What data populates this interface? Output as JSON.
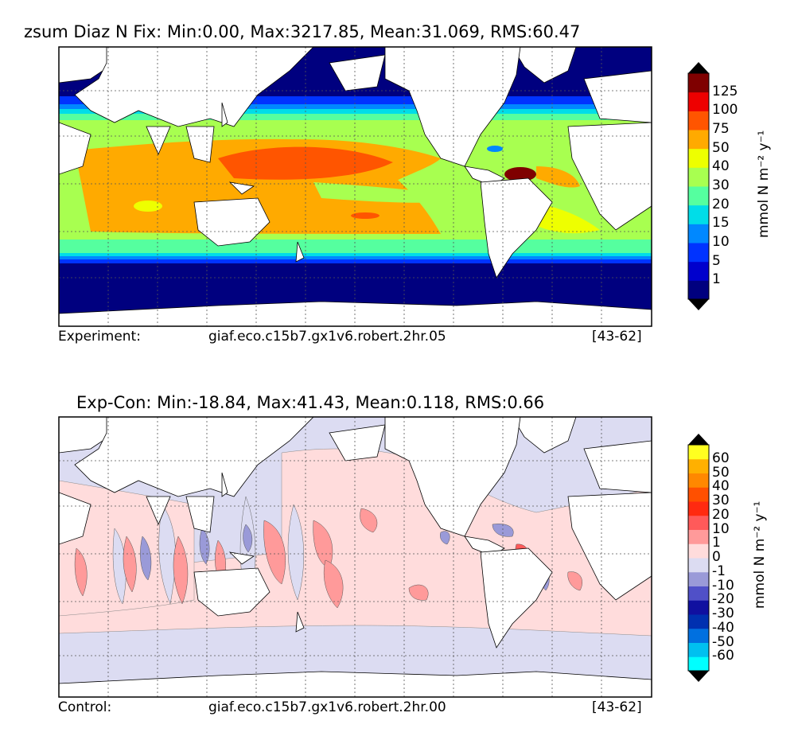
{
  "top_panel": {
    "title": "zsum Diaz N Fix: Min:0.00, Max:3217.85, Mean:31.069, RMS:60.47",
    "footer_left": "Experiment:",
    "footer_center": "giaf.eco.c15b7.gx1v6.robert.2hr.05",
    "footer_right": "[43-62]",
    "colorbar": {
      "labels": [
        "125",
        "100",
        "75",
        "50",
        "40",
        "30",
        "20",
        "15",
        "10",
        "5",
        "1"
      ],
      "units": "mmol N m⁻² y⁻¹",
      "colors": [
        "#00007f",
        "#0000cd",
        "#0033ff",
        "#0088ff",
        "#00dde8",
        "#55ff9f",
        "#a8ff50",
        "#eeff00",
        "#ffaa00",
        "#ff5500",
        "#ee0000",
        "#7f0000"
      ]
    }
  },
  "bottom_panel": {
    "title": "Exp-Con: Min:-18.84, Max:41.43, Mean:0.118, RMS:0.66",
    "footer_left": "Control:",
    "footer_center": "giaf.eco.c15b7.gx1v6.robert.2hr.00",
    "footer_right": "[43-62]",
    "colorbar": {
      "labels": [
        "60",
        "50",
        "40",
        "30",
        "20",
        "10",
        "1",
        "0",
        "-1",
        "-10",
        "-20",
        "-30",
        "-40",
        "-50",
        "-60"
      ],
      "units": "mmol N m⁻² y⁻¹",
      "colors": [
        "#00ffff",
        "#00c0f0",
        "#0070e0",
        "#0030b0",
        "#1010a0",
        "#5050c8",
        "#9a9ad8",
        "#dcdcf2",
        "#ffdcdc",
        "#ff9a9a",
        "#ff5a5a",
        "#ff2a10",
        "#ff5000",
        "#ff8800",
        "#ffb000",
        "#ffff20"
      ]
    }
  }
}
